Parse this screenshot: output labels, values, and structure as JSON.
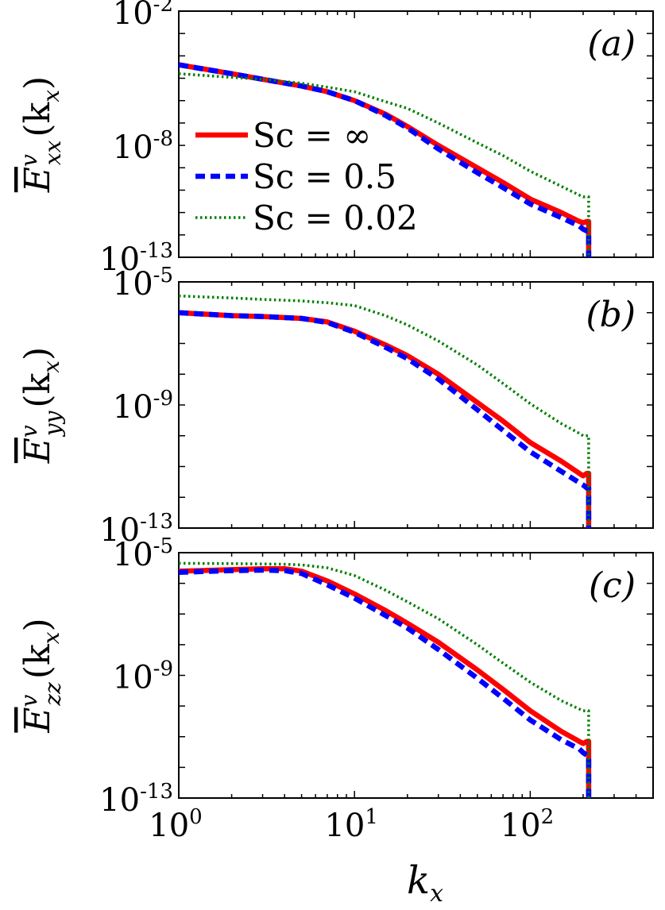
{
  "chart_data": [
    {
      "type": "line",
      "panel_label": "(a)",
      "ylabel": {
        "base": "E",
        "sup": "v",
        "sub": "xx",
        "arg": "(k",
        "arg_sub": "x",
        "close": ")"
      },
      "xlim": [
        1,
        500
      ],
      "ylim": [
        1e-13,
        0.01
      ],
      "xscale": "log",
      "yscale": "log",
      "yticks": [
        {
          "base": "10",
          "exp": "-2",
          "value": 0.01
        },
        {
          "base": "10",
          "exp": "-8",
          "value": 1e-08
        },
        {
          "base": "10",
          "exp": "-13",
          "value": 1e-13
        }
      ],
      "legend": {
        "placement": "center-left"
      },
      "series": [
        {
          "name": "Sc = ∞",
          "color": "#ff0000",
          "style": "solid",
          "x": [
            1,
            2,
            3,
            5,
            7,
            10,
            15,
            20,
            30,
            50,
            70,
            100,
            150,
            190,
            200,
            210,
            215
          ],
          "y": [
            4e-05,
            1.6e-05,
            9e-06,
            4.5e-06,
            2.5e-06,
            1e-06,
            2.5e-07,
            7e-08,
            1e-08,
            1e-09,
            2.2e-10,
            4e-11,
            1e-11,
            4e-12,
            3.5e-12,
            4e-12,
            4e-12
          ]
        },
        {
          "name": "Sc = 0.5",
          "color": "#0000ff",
          "style": "dashed",
          "x": [
            1,
            2,
            3,
            5,
            7,
            10,
            15,
            20,
            30,
            50,
            70,
            100,
            150,
            190,
            200,
            210,
            215
          ],
          "y": [
            4e-05,
            1.6e-05,
            9e-06,
            4.5e-06,
            2.5e-06,
            1e-06,
            2.2e-07,
            6e-08,
            7e-09,
            6e-10,
            1.3e-10,
            2.4e-11,
            6e-12,
            2.5e-12,
            1.8e-12,
            1.5e-12,
            1.5e-12
          ]
        },
        {
          "name": "Sc = 0.02",
          "color": "#008000",
          "style": "dotted",
          "x": [
            1,
            2,
            3,
            5,
            7,
            10,
            15,
            20,
            30,
            50,
            70,
            100,
            150,
            190,
            200,
            210,
            215
          ],
          "y": [
            1.6e-05,
            1.1e-05,
            9e-06,
            6e-06,
            4e-06,
            2.5e-06,
            9e-07,
            4.5e-07,
            1e-07,
            1.3e-08,
            3.5e-09,
            7e-10,
            1.5e-10,
            6e-11,
            5e-11,
            5e-11,
            5e-11
          ]
        }
      ]
    },
    {
      "type": "line",
      "panel_label": "(b)",
      "ylabel": {
        "base": "E",
        "sup": "v",
        "sub": "yy",
        "arg": "(k",
        "arg_sub": "x",
        "close": ")"
      },
      "xlim": [
        1,
        500
      ],
      "ylim": [
        1e-13,
        1e-05
      ],
      "xscale": "log",
      "yscale": "log",
      "yticks": [
        {
          "base": "10",
          "exp": "-5",
          "value": 1e-05
        },
        {
          "base": "10",
          "exp": "-9",
          "value": 1e-09
        },
        {
          "base": "10",
          "exp": "-13",
          "value": 1e-13
        }
      ],
      "series": [
        {
          "name": "Sc = ∞",
          "color": "#ff0000",
          "style": "solid",
          "x": [
            1,
            2,
            3,
            5,
            7,
            10,
            15,
            20,
            30,
            50,
            70,
            100,
            150,
            190,
            200,
            210,
            215
          ],
          "y": [
            1e-06,
            8e-07,
            7.5e-07,
            6.5e-07,
            5e-07,
            2.5e-07,
            9e-08,
            4e-08,
            1e-08,
            1.2e-09,
            3e-10,
            6e-11,
            1.5e-11,
            6e-12,
            5e-12,
            6e-12,
            6e-12
          ]
        },
        {
          "name": "Sc = 0.5",
          "color": "#0000ff",
          "style": "dashed",
          "x": [
            1,
            2,
            3,
            5,
            7,
            10,
            15,
            20,
            30,
            50,
            70,
            100,
            150,
            190,
            200,
            210,
            215
          ],
          "y": [
            1e-06,
            8e-07,
            7.5e-07,
            6.5e-07,
            4.8e-07,
            2.3e-07,
            7.5e-08,
            3.2e-08,
            7e-09,
            7e-10,
            1.5e-10,
            3e-11,
            7e-12,
            3e-12,
            2.5e-12,
            2e-12,
            2e-12
          ]
        },
        {
          "name": "Sc = 0.02",
          "color": "#008000",
          "style": "dotted",
          "x": [
            1,
            2,
            3,
            5,
            7,
            10,
            15,
            20,
            30,
            50,
            70,
            100,
            150,
            190,
            200,
            210,
            215
          ],
          "y": [
            3.5e-06,
            3e-06,
            2.7e-06,
            2.4e-06,
            2.1e-06,
            1.7e-06,
            8e-07,
            4e-07,
            1.2e-07,
            2e-08,
            5e-09,
            1.1e-09,
            2.5e-10,
            1.2e-10,
            1e-10,
            1e-10,
            1e-10
          ]
        }
      ]
    },
    {
      "type": "line",
      "panel_label": "(c)",
      "ylabel": {
        "base": "E",
        "sup": "v",
        "sub": "zz",
        "arg": "(k",
        "arg_sub": "x",
        "close": ")"
      },
      "xlim": [
        1,
        500
      ],
      "ylim": [
        1e-13,
        1e-05
      ],
      "xscale": "log",
      "yscale": "log",
      "xlabel": {
        "base": "k",
        "sub": "x"
      },
      "xticks": [
        {
          "base": "10",
          "exp": "0",
          "value": 1
        },
        {
          "base": "10",
          "exp": "1",
          "value": 10
        },
        {
          "base": "10",
          "exp": "2",
          "value": 100
        }
      ],
      "yticks": [
        {
          "base": "10",
          "exp": "-5",
          "value": 1e-05
        },
        {
          "base": "10",
          "exp": "-9",
          "value": 1e-09
        },
        {
          "base": "10",
          "exp": "-13",
          "value": 1e-13
        }
      ],
      "series": [
        {
          "name": "Sc = ∞",
          "color": "#ff0000",
          "style": "solid",
          "x": [
            1,
            2,
            3,
            4,
            5,
            7,
            10,
            15,
            20,
            30,
            50,
            70,
            100,
            150,
            190,
            200,
            210,
            215
          ],
          "y": [
            2.5e-06,
            2.8e-06,
            3e-06,
            3e-06,
            2.5e-06,
            1.2e-06,
            4.5e-07,
            1.3e-07,
            5e-08,
            1.2e-08,
            1.5e-09,
            3.5e-10,
            7e-11,
            1.5e-11,
            7e-12,
            6e-12,
            7e-12,
            7e-12
          ]
        },
        {
          "name": "Sc = 0.5",
          "color": "#0000ff",
          "style": "dashed",
          "x": [
            1,
            2,
            3,
            4,
            5,
            7,
            10,
            15,
            20,
            30,
            50,
            70,
            100,
            150,
            190,
            200,
            210,
            215
          ],
          "y": [
            2.3e-06,
            2.6e-06,
            2.7e-06,
            2.6e-06,
            2.1e-06,
            9e-07,
            3.3e-07,
            9e-08,
            3.5e-08,
            7e-09,
            8e-10,
            1.8e-10,
            3.5e-11,
            8e-12,
            4e-12,
            3e-12,
            2.5e-12,
            2.5e-12
          ]
        },
        {
          "name": "Sc = 0.02",
          "color": "#008000",
          "style": "dotted",
          "x": [
            1,
            2,
            3,
            4,
            5,
            7,
            10,
            15,
            20,
            30,
            50,
            70,
            100,
            150,
            190,
            200,
            210,
            215
          ],
          "y": [
            4.5e-06,
            4.4e-06,
            4.3e-06,
            4.2e-06,
            4e-06,
            3.2e-06,
            1.8e-06,
            6e-07,
            2.5e-07,
            7e-08,
            1e-08,
            2.5e-09,
            6e-10,
            1.5e-10,
            8e-11,
            7e-11,
            7e-11,
            7e-11
          ]
        }
      ]
    }
  ]
}
